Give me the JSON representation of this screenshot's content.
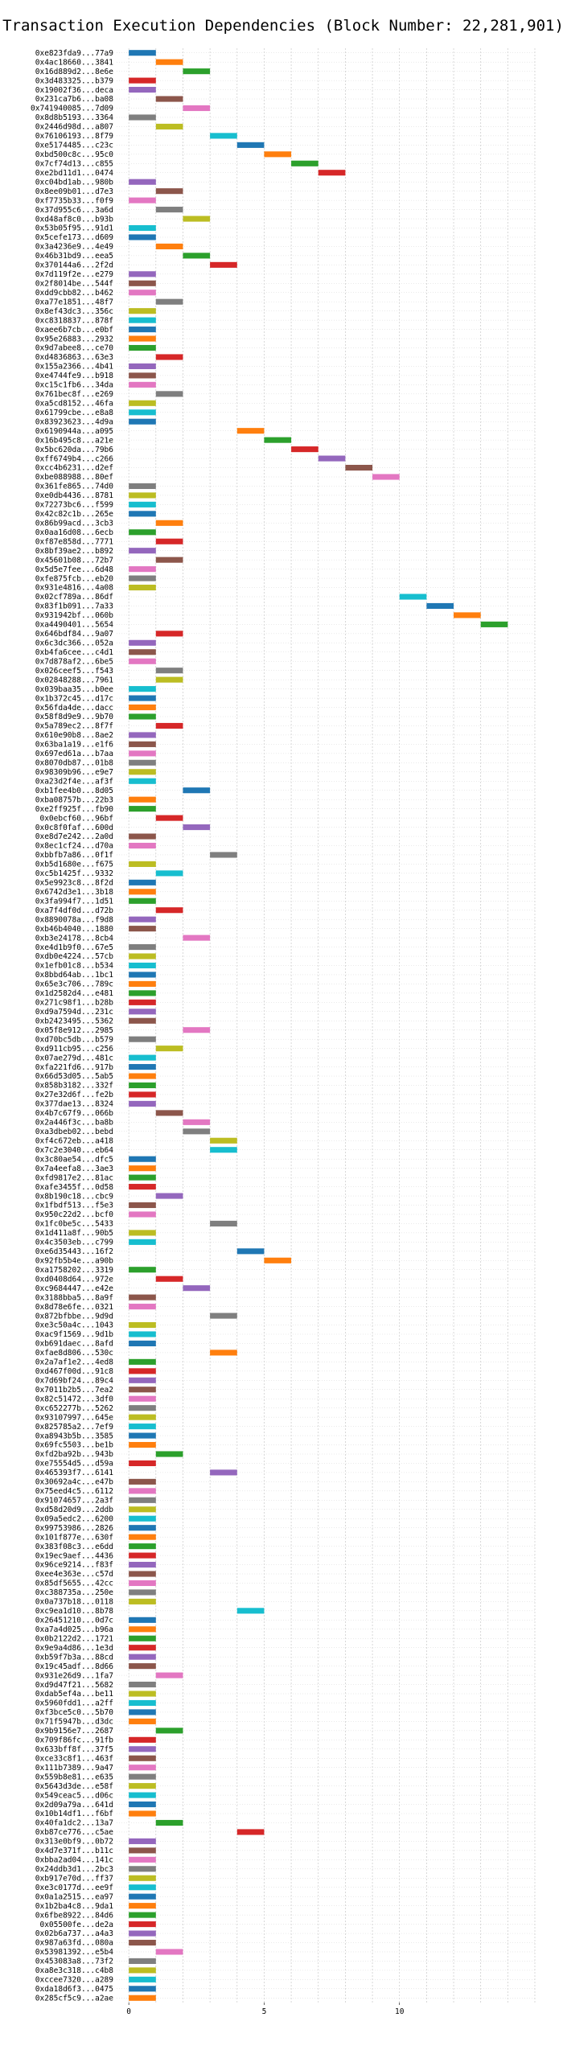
{
  "chart_data": {
    "type": "bar",
    "orientation": "horizontal",
    "chart_style": "gantt",
    "title": "Transaction Execution Dependencies (Block Number: 22,281,901)",
    "xlabel": "",
    "ylabel": "",
    "xlim": [
      -0.45,
      15
    ],
    "x_ticks": [
      0,
      5,
      10
    ],
    "grid": true,
    "grid_axes": "x",
    "legend": "none",
    "bar_width": 1.0,
    "palette": [
      "#1f77b4",
      "#ff7f0e",
      "#2ca02c",
      "#d62728",
      "#9467bd",
      "#8c564b",
      "#e377c2",
      "#7f7f7f",
      "#bcbd22",
      "#17becf"
    ],
    "transactions": [
      {
        "label": "0xe823fda9...77a9",
        "start": 0
      },
      {
        "label": "0x4ac18660...3841",
        "start": 1
      },
      {
        "label": "0x16d889d2...8e6e",
        "start": 2
      },
      {
        "label": "0x3d483325...b379",
        "start": 0
      },
      {
        "label": "0x19002f36...deca",
        "start": 0
      },
      {
        "label": "0x231ca7b6...ba08",
        "start": 1
      },
      {
        "label": "0x741940085...7d09",
        "start": 2
      },
      {
        "label": "0x8d8b5193...3364",
        "start": 0
      },
      {
        "label": "0x2446d98d...a807",
        "start": 1
      },
      {
        "label": "0x76106193...8f79",
        "start": 3
      },
      {
        "label": "0xe5174485...c23c",
        "start": 4
      },
      {
        "label": "0xbd500c8c...95c0",
        "start": 5
      },
      {
        "label": "0x7cf74d13...c855",
        "start": 6
      },
      {
        "label": "0xe2bd11d1...0474",
        "start": 7
      },
      {
        "label": "0xc04bd1ab...980b",
        "start": 0
      },
      {
        "label": "0x8ee09b01...d7e3",
        "start": 1
      },
      {
        "label": "0xf7735b33...f0f9",
        "start": 0
      },
      {
        "label": "0x37d955c6...3a6d",
        "start": 1
      },
      {
        "label": "0xd48af8c0...b93b",
        "start": 2
      },
      {
        "label": "0x53b05f95...91d1",
        "start": 0
      },
      {
        "label": "0x5cefe173...d609",
        "start": 0
      },
      {
        "label": "0x3a4236e9...4e49",
        "start": 1
      },
      {
        "label": "0x46b31bd9...eea5",
        "start": 2
      },
      {
        "label": "0x370144a6...2f2d",
        "start": 3
      },
      {
        "label": "0x7d119f2e...e279",
        "start": 0
      },
      {
        "label": "0x2f8014be...544f",
        "start": 0
      },
      {
        "label": "0xdd9cbb82...b462",
        "start": 0
      },
      {
        "label": "0xa77e1851...48f7",
        "start": 1
      },
      {
        "label": "0x8ef43dc3...356c",
        "start": 0
      },
      {
        "label": "0xc8318837...878f",
        "start": 0
      },
      {
        "label": "0xaee6b7cb...e0bf",
        "start": 0
      },
      {
        "label": "0x95e26883...2932",
        "start": 0
      },
      {
        "label": "0x9d7abee8...ce70",
        "start": 0
      },
      {
        "label": "0xd4836863...63e3",
        "start": 1
      },
      {
        "label": "0x155a2366...4b41",
        "start": 0
      },
      {
        "label": "0xe4744fe9...b918",
        "start": 0
      },
      {
        "label": "0xc15c1fb6...34da",
        "start": 0
      },
      {
        "label": "0x761bec8f...e269",
        "start": 1
      },
      {
        "label": "0xa5cd8152...46fa",
        "start": 0
      },
      {
        "label": "0x61799cbe...e8a8",
        "start": 0
      },
      {
        "label": "0x83923623...4d9a",
        "start": 0
      },
      {
        "label": "0x6190944a...a095",
        "start": 4
      },
      {
        "label": "0x16b495c8...a21e",
        "start": 5
      },
      {
        "label": "0x5bc620da...79b6",
        "start": 6
      },
      {
        "label": "0xff6749b4...c266",
        "start": 7
      },
      {
        "label": "0xcc4b6231...d2ef",
        "start": 8
      },
      {
        "label": "0xbe088988...80ef",
        "start": 9
      },
      {
        "label": "0x361fe865...74d0",
        "start": 0
      },
      {
        "label": "0xe0db4436...8781",
        "start": 0
      },
      {
        "label": "0x72273bc6...f599",
        "start": 0
      },
      {
        "label": "0x42c82c1b...265e",
        "start": 0
      },
      {
        "label": "0x86b99acd...3cb3",
        "start": 1
      },
      {
        "label": "0x0aa16d08...6ecb",
        "start": 0
      },
      {
        "label": "0xf87e858d...7771",
        "start": 1
      },
      {
        "label": "0x8bf39ae2...b892",
        "start": 0
      },
      {
        "label": "0x45601b08...72b7",
        "start": 1
      },
      {
        "label": "0x5d5e7fee...6d48",
        "start": 0
      },
      {
        "label": "0xfe875fcb...eb20",
        "start": 0
      },
      {
        "label": "0x931e4816...4a08",
        "start": 0
      },
      {
        "label": "0x02cf789a...86df",
        "start": 10
      },
      {
        "label": "0x83f1b091...7a33",
        "start": 11
      },
      {
        "label": "0x931942bf...060b",
        "start": 12
      },
      {
        "label": "0xa4490401...5654",
        "start": 13
      },
      {
        "label": "0x646bdf84...9a07",
        "start": 1
      },
      {
        "label": "0x6c3dc366...052a",
        "start": 0
      },
      {
        "label": "0xb4fa6cee...c4d1",
        "start": 0
      },
      {
        "label": "0x7d878af2...6be5",
        "start": 0
      },
      {
        "label": "0x026ceef5...f543",
        "start": 1
      },
      {
        "label": "0x02848288...7961",
        "start": 1
      },
      {
        "label": "0x039baa35...b0ee",
        "start": 0
      },
      {
        "label": "0x1b372c45...d17c",
        "start": 0
      },
      {
        "label": "0x56fda4de...dacc",
        "start": 0
      },
      {
        "label": "0x58f8d9e9...9b70",
        "start": 0
      },
      {
        "label": "0x5a789ec2...8f7f",
        "start": 1
      },
      {
        "label": "0x610e90b8...8ae2",
        "start": 0
      },
      {
        "label": "0x63ba1a19...e1f6",
        "start": 0
      },
      {
        "label": "0x697ed61a...b7aa",
        "start": 0
      },
      {
        "label": "0x8070db87...01b8",
        "start": 0
      },
      {
        "label": "0x98309b96...e9e7",
        "start": 0
      },
      {
        "label": "0xa23d2f4e...af3f",
        "start": 0
      },
      {
        "label": "0xb1fee4b0...8d05",
        "start": 2
      },
      {
        "label": "0xba08757b...22b3",
        "start": 0
      },
      {
        "label": "0xe2ff925f...fb90",
        "start": 0
      },
      {
        "label": "0x0ebcf60...96bf",
        "start": 1
      },
      {
        "label": "0x0c8f0faf...600d",
        "start": 2
      },
      {
        "label": "0xe8d7e242...2a0d",
        "start": 0
      },
      {
        "label": "0x8ec1cf24...d70a",
        "start": 0
      },
      {
        "label": "0xbbfb7a86...0f1f",
        "start": 3
      },
      {
        "label": "0xb5d1680e...f675",
        "start": 0
      },
      {
        "label": "0xc5b1425f...9332",
        "start": 1
      },
      {
        "label": "0x5e9923c8...8f2d",
        "start": 0
      },
      {
        "label": "0x6742d3e1...3b18",
        "start": 0
      },
      {
        "label": "0x3fa994f7...1d51",
        "start": 0
      },
      {
        "label": "0xa7f4df0d...d72b",
        "start": 1
      },
      {
        "label": "0x8890078a...f9d8",
        "start": 0
      },
      {
        "label": "0xb46b4040...1880",
        "start": 0
      },
      {
        "label": "0xb3e24178...8cb4",
        "start": 2
      },
      {
        "label": "0xe4d1b9f0...67e5",
        "start": 0
      },
      {
        "label": "0xdb0e4224...57cb",
        "start": 0
      },
      {
        "label": "0x1efb01c8...b534",
        "start": 0
      },
      {
        "label": "0x8bbd64ab...1bc1",
        "start": 0
      },
      {
        "label": "0x65e3c706...789c",
        "start": 0
      },
      {
        "label": "0x1d2582d4...e481",
        "start": 0
      },
      {
        "label": "0x271c98f1...b28b",
        "start": 0
      },
      {
        "label": "0xd9a7594d...231c",
        "start": 0
      },
      {
        "label": "0xb2423495...5362",
        "start": 0
      },
      {
        "label": "0x05f8e912...2985",
        "start": 2
      },
      {
        "label": "0xd70bc5db...b579",
        "start": 0
      },
      {
        "label": "0xd911cb95...c256",
        "start": 1
      },
      {
        "label": "0x07ae279d...481c",
        "start": 0
      },
      {
        "label": "0xfa221fd6...917b",
        "start": 0
      },
      {
        "label": "0x66d53d05...5ab5",
        "start": 0
      },
      {
        "label": "0x858b3182...332f",
        "start": 0
      },
      {
        "label": "0x27e32d6f...fe2b",
        "start": 0
      },
      {
        "label": "0x377dae13...8324",
        "start": 0
      },
      {
        "label": "0x4b7c67f9...066b",
        "start": 1
      },
      {
        "label": "0x2a446f3c...ba8b",
        "start": 2
      },
      {
        "label": "0xa3dbeb02...bebd",
        "start": 2
      },
      {
        "label": "0xf4c672eb...a418",
        "start": 3
      },
      {
        "label": "0x7c2e3040...eb64",
        "start": 3
      },
      {
        "label": "0x3c80ae54...dfc5",
        "start": 0
      },
      {
        "label": "0x7a4eefa8...3ae3",
        "start": 0
      },
      {
        "label": "0xfd9817e2...81ac",
        "start": 0
      },
      {
        "label": "0xafe3455f...0d58",
        "start": 0
      },
      {
        "label": "0x8b190c18...cbc9",
        "start": 1
      },
      {
        "label": "0x1fbdf513...f5e3",
        "start": 0
      },
      {
        "label": "0x950c22d2...bcf0",
        "start": 0
      },
      {
        "label": "0x1fc0be5c...5433",
        "start": 3
      },
      {
        "label": "0x1d411a8f...90b5",
        "start": 0
      },
      {
        "label": "0x4c3503eb...c799",
        "start": 0
      },
      {
        "label": "0xe6d35443...16f2",
        "start": 4
      },
      {
        "label": "0x92fb5b4e...a90b",
        "start": 5
      },
      {
        "label": "0xa1758202...3319",
        "start": 0
      },
      {
        "label": "0xd0408d64...972e",
        "start": 1
      },
      {
        "label": "0xc9684447...e42e",
        "start": 2
      },
      {
        "label": "0x3188bba5...8a9f",
        "start": 0
      },
      {
        "label": "0x8d78e6fe...0321",
        "start": 0
      },
      {
        "label": "0x872bfbbe...9d9d",
        "start": 3
      },
      {
        "label": "0xe3c50a4c...1043",
        "start": 0
      },
      {
        "label": "0xac9f1569...9d1b",
        "start": 0
      },
      {
        "label": "0xb691daec...8afd",
        "start": 0
      },
      {
        "label": "0xfae8d806...530c",
        "start": 3
      },
      {
        "label": "0x2a7af1e2...4ed8",
        "start": 0
      },
      {
        "label": "0xd467f00d...91c8",
        "start": 0
      },
      {
        "label": "0x7d69bf24...89c4",
        "start": 0
      },
      {
        "label": "0x7011b2b5...7ea2",
        "start": 0
      },
      {
        "label": "0x82c51472...3df0",
        "start": 0
      },
      {
        "label": "0xc652277b...5262",
        "start": 0
      },
      {
        "label": "0x93107997...645e",
        "start": 0
      },
      {
        "label": "0x825785a2...7ef9",
        "start": 0
      },
      {
        "label": "0xa8943b5b...3585",
        "start": 0
      },
      {
        "label": "0x69fc5503...be1b",
        "start": 0
      },
      {
        "label": "0xfd2ba92b...943b",
        "start": 1
      },
      {
        "label": "0xe75554d5...d59a",
        "start": 0
      },
      {
        "label": "0x465393f7...6141",
        "start": 3
      },
      {
        "label": "0x30692a4c...e47b",
        "start": 0
      },
      {
        "label": "0x75eed4c5...6112",
        "start": 0
      },
      {
        "label": "0x91074657...2a3f",
        "start": 0
      },
      {
        "label": "0xd58d20d9...2ddb",
        "start": 0
      },
      {
        "label": "0x09a5edc2...6200",
        "start": 0
      },
      {
        "label": "0x99753986...2826",
        "start": 0
      },
      {
        "label": "0x101f877e...630f",
        "start": 0
      },
      {
        "label": "0x383f08c3...e6dd",
        "start": 0
      },
      {
        "label": "0x19ec9aef...4436",
        "start": 0
      },
      {
        "label": "0x96ce9214...f83f",
        "start": 0
      },
      {
        "label": "0xee4e363e...c57d",
        "start": 0
      },
      {
        "label": "0x85df5655...42cc",
        "start": 0
      },
      {
        "label": "0xc388735a...250e",
        "start": 0
      },
      {
        "label": "0x0a737b18...0118",
        "start": 0
      },
      {
        "label": "0xc9ea1d10...8b78",
        "start": 4
      },
      {
        "label": "0x26451210...0d7c",
        "start": 0
      },
      {
        "label": "0xa7a4d025...b96a",
        "start": 0
      },
      {
        "label": "0x0b2122d2...1721",
        "start": 0
      },
      {
        "label": "0x9e9a4d86...1e3d",
        "start": 0
      },
      {
        "label": "0xb59f7b3a...88cd",
        "start": 0
      },
      {
        "label": "0x19c45adf...8d66",
        "start": 0
      },
      {
        "label": "0x931e26d9...1fa7",
        "start": 1
      },
      {
        "label": "0xd9d47f21...5682",
        "start": 0
      },
      {
        "label": "0xdab5ef4a...be11",
        "start": 0
      },
      {
        "label": "0x5960fdd1...a2ff",
        "start": 0
      },
      {
        "label": "0xf3bce5c0...5b70",
        "start": 0
      },
      {
        "label": "0x71f5947b...d3dc",
        "start": 0
      },
      {
        "label": "0x9b9156e7...2687",
        "start": 1
      },
      {
        "label": "0x709f86fc...91fb",
        "start": 0
      },
      {
        "label": "0x633bff8f...37f5",
        "start": 0
      },
      {
        "label": "0xce33c8f1...463f",
        "start": 0
      },
      {
        "label": "0x111b7389...9a47",
        "start": 0
      },
      {
        "label": "0x559b8e81...e635",
        "start": 0
      },
      {
        "label": "0x5643d3de...e58f",
        "start": 0
      },
      {
        "label": "0x549ceac5...d06c",
        "start": 0
      },
      {
        "label": "0x2d09a79a...641d",
        "start": 0
      },
      {
        "label": "0x10b14df1...f6bf",
        "start": 0
      },
      {
        "label": "0x40fa1dc2...13a7",
        "start": 1
      },
      {
        "label": "0xb87ce776...c5ae",
        "start": 4
      },
      {
        "label": "0x313e0bf9...0b72",
        "start": 0
      },
      {
        "label": "0x4d7e371f...b11c",
        "start": 0
      },
      {
        "label": "0xbba2ad04...141c",
        "start": 0
      },
      {
        "label": "0x24ddb3d1...2bc3",
        "start": 0
      },
      {
        "label": "0xb917e70d...ff37",
        "start": 0
      },
      {
        "label": "0xe3c0177d...ee9f",
        "start": 0
      },
      {
        "label": "0x0a1a2515...ea97",
        "start": 0
      },
      {
        "label": "0x1b2ba4c8...9da1",
        "start": 0
      },
      {
        "label": "0x6fbe8922...84d6",
        "start": 0
      },
      {
        "label": "0x05500fe...de2a",
        "start": 0
      },
      {
        "label": "0x02b6a737...a4a3",
        "start": 0
      },
      {
        "label": "0x987a63fd...080a",
        "start": 0
      },
      {
        "label": "0x53981392...e5b4",
        "start": 1
      },
      {
        "label": "0x453083a8...73f2",
        "start": 0
      },
      {
        "label": "0xa8e3c318...c4b8",
        "start": 0
      },
      {
        "label": "0xccee7320...a289",
        "start": 0
      },
      {
        "label": "0xda18d6f3...0475",
        "start": 0
      },
      {
        "label": "0x285cf5c9...a2ae",
        "start": 0
      }
    ]
  }
}
